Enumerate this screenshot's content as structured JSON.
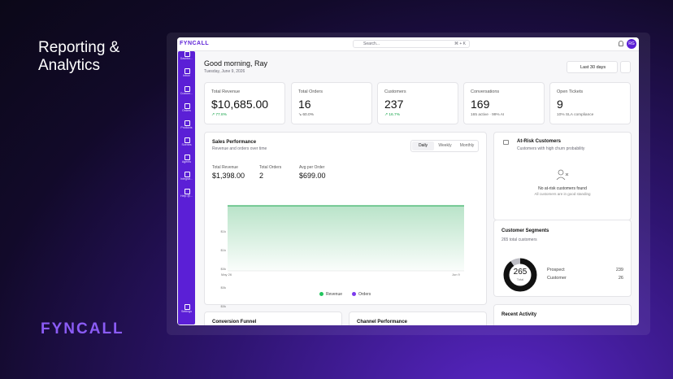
{
  "hero": {
    "title_line1": "Reporting &",
    "title_line2": "Analytics",
    "brand": "FYNCALL"
  },
  "app": {
    "logo": "FYNCALL",
    "search": "Search...",
    "shortcut": "⌘ + K",
    "avatar": "RG",
    "sidebar": [
      "Dashbo...",
      "Inbox",
      "Custom...",
      "Orders",
      "Products",
      "Scenes",
      "Agents",
      "Integrat...",
      "Help @...",
      "Settings"
    ],
    "greeting": "Good morning, Ray",
    "date": "Tuesday, June 9, 2026",
    "range": "Last 30 days",
    "kpis": [
      {
        "label": "Total Revenue",
        "value": "$10,685.00",
        "note": "↗ 77.8%"
      },
      {
        "label": "Total Orders",
        "value": "16",
        "note": "↘ 60.0%"
      },
      {
        "label": "Customers",
        "value": "237",
        "note": "↗ 16.7%"
      },
      {
        "label": "Conversations",
        "value": "169",
        "note": "165 active · 99% AI"
      },
      {
        "label": "Open Tickets",
        "value": "9",
        "note": "10% SLA compliance"
      }
    ],
    "sales": {
      "title": "Sales Performance",
      "subtitle": "Revenue and orders over time",
      "tabs": [
        "Daily",
        "Weekly",
        "Monthly"
      ],
      "stats": [
        {
          "label": "Total Revenue",
          "value": "$1,398.00"
        },
        {
          "label": "Total Orders",
          "value": "2"
        },
        {
          "label": "Avg per Order",
          "value": "$699.00"
        }
      ],
      "yticks": [
        "$1k",
        "$1k",
        "$0k",
        "$0k",
        "$0k"
      ],
      "xlabels": [
        "May 26",
        "Jun 9"
      ],
      "legend": [
        "Revenue",
        "Orders"
      ]
    },
    "at_risk": {
      "title": "At-Risk Customers",
      "subtitle": "Customers with high churn probability",
      "empty_title": "No at-risk customers found",
      "empty_text": "All customers are in good standing"
    },
    "segments": {
      "title": "Customer Segments",
      "subtitle": "265 total customers",
      "total": 265,
      "total_label": "Total",
      "items": [
        {
          "name": "Prospect",
          "value": 239
        },
        {
          "name": "Customer",
          "value": 26
        }
      ]
    },
    "recent": {
      "title": "Recent Activity"
    },
    "funnel": {
      "title": "Conversion Funnel"
    },
    "channels": {
      "title": "Channel Performance"
    }
  }
}
